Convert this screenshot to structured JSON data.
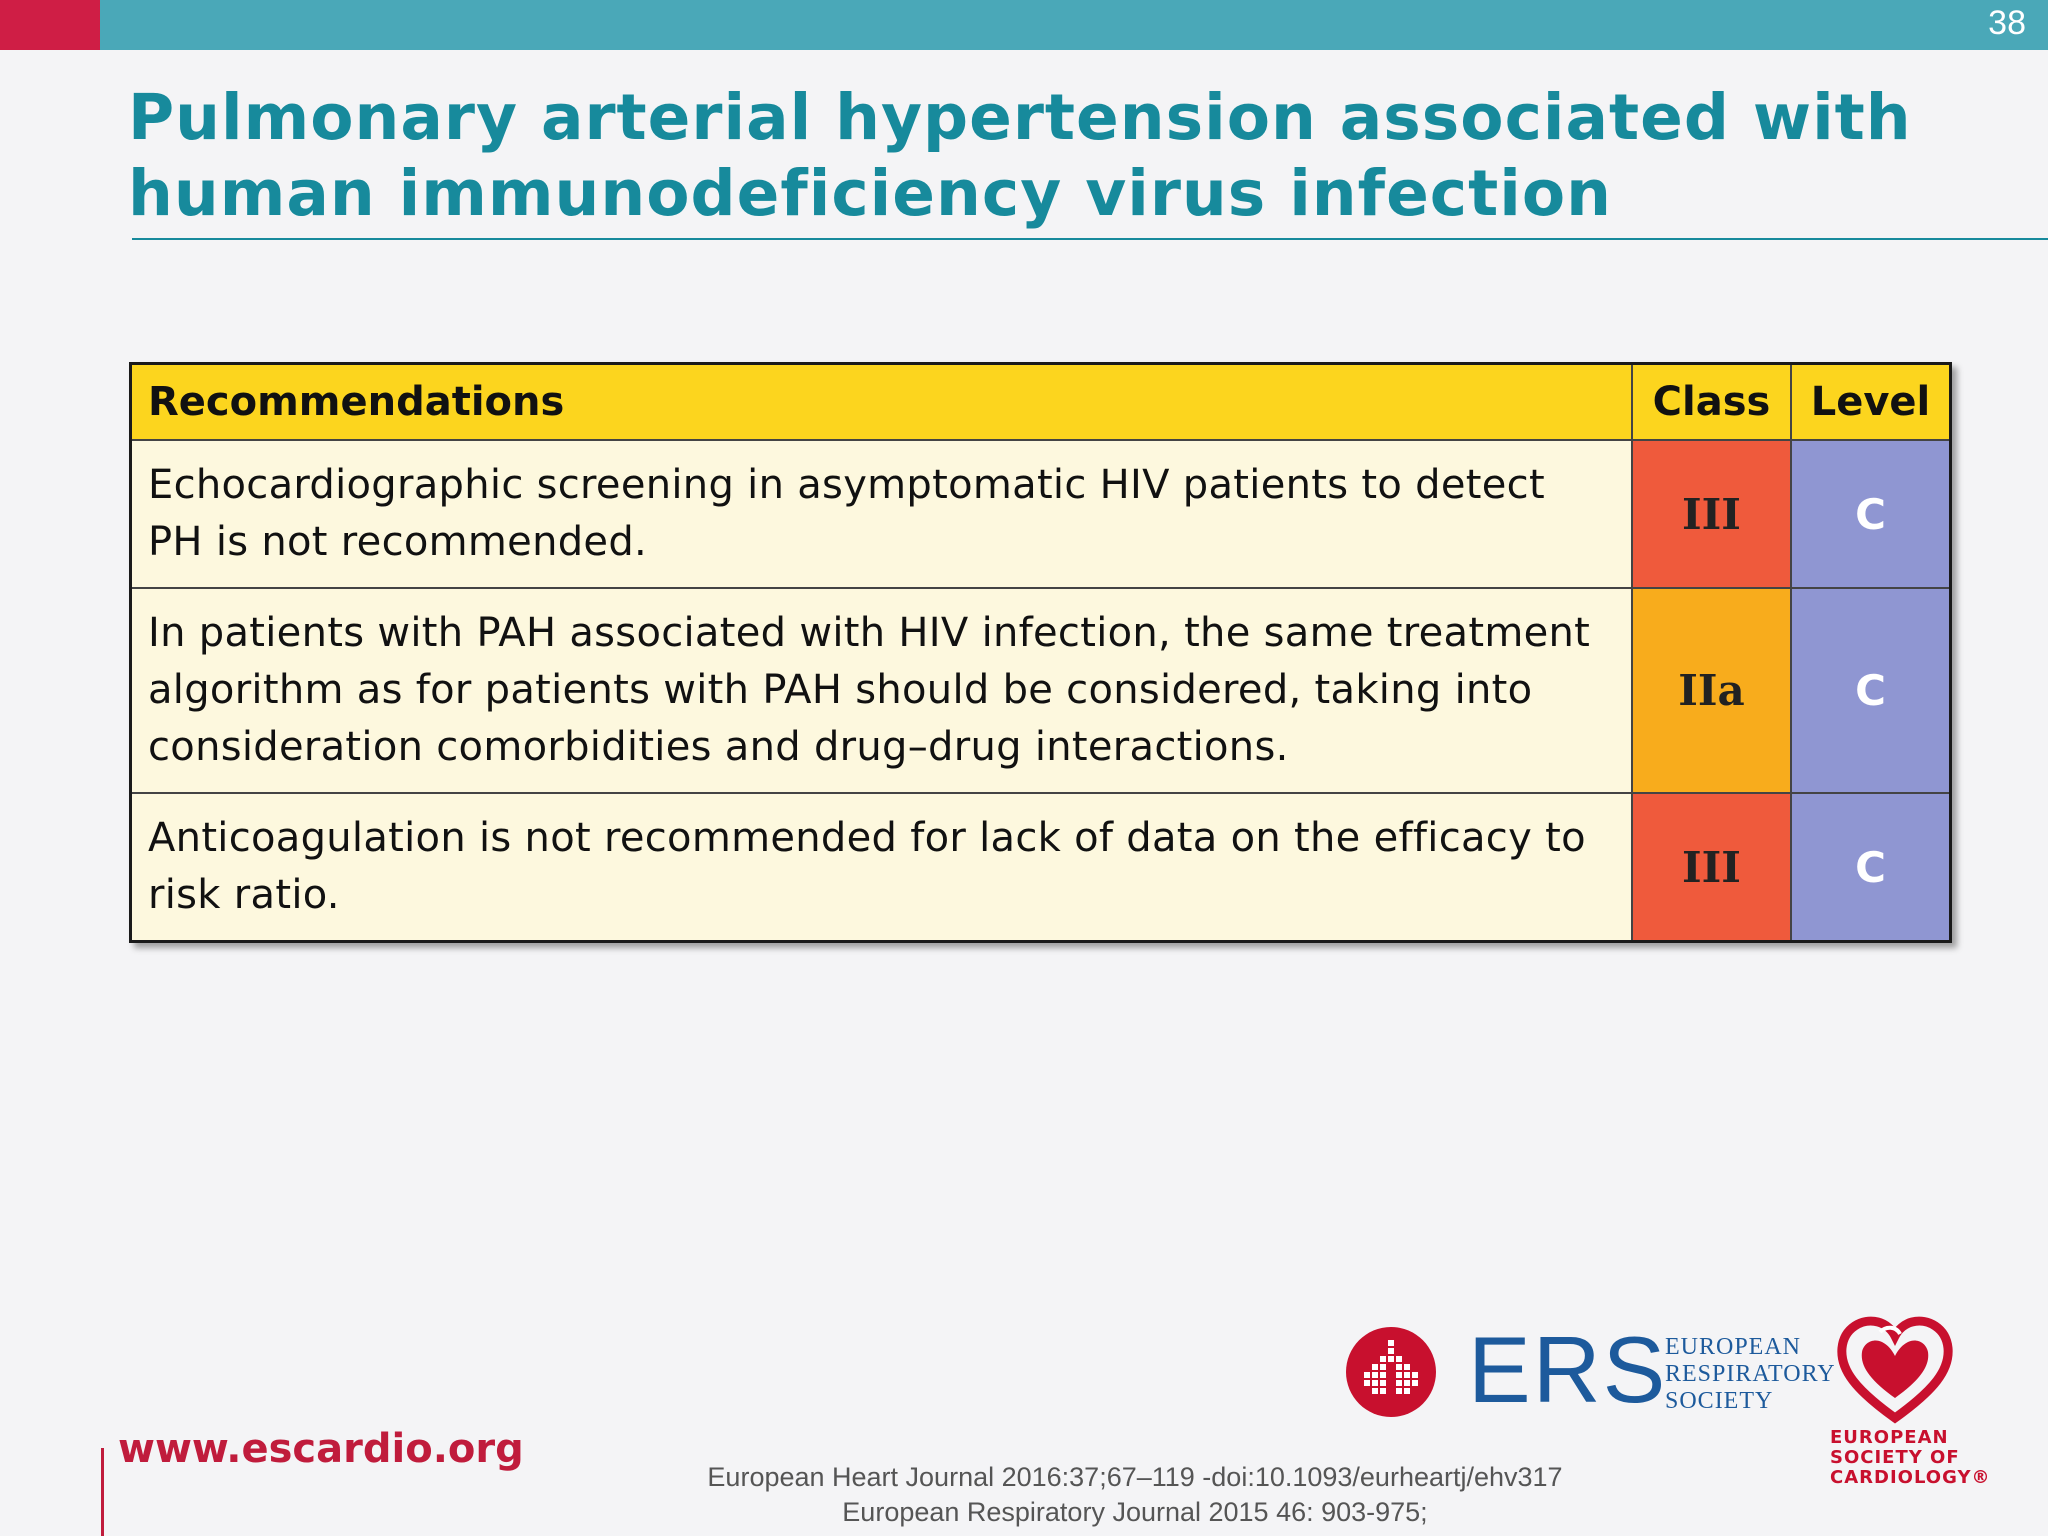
{
  "slide_number": "38",
  "title_line1": "Pulmonary arterial hypertension associated with",
  "title_line2": "human immunodeficiency virus infection",
  "table": {
    "headers": {
      "recommendations": "Recommendations",
      "class": "Class",
      "level": "Level"
    },
    "rows": [
      {
        "text": "Echocardiographic screening in asymptomatic HIV patients to detect PH is not recommended.",
        "class": "III",
        "level": "C",
        "class_color": "#ef5a3c"
      },
      {
        "text": "In patients with PAH associated with HIV infection, the same treatment algorithm as for patients with PAH should be considered, taking into consideration comorbidities and drug–drug interactions.",
        "class": "IIa",
        "level": "C",
        "class_color": "#f8ac1c"
      },
      {
        "text": "Anticoagulation is not recommended for lack of data on the efficacy to risk ratio.",
        "class": "III",
        "level": "C",
        "class_color": "#ef5a3c"
      }
    ]
  },
  "footer": {
    "url": "www.escardio.org",
    "ref1": "European Heart Journal 2016:37;67–119 -doi:10.1093/eurheartj/ehv317",
    "ref2": "European Respiratory Journal 2015 46: 903-975;"
  },
  "logos": {
    "ers_abbr": "ERS",
    "ers_line1": "EUROPEAN",
    "ers_line2": "RESPIRATORY",
    "ers_line3": "SOCIETY",
    "esc_line1": "EUROPEAN",
    "esc_line2": "SOCIETY OF",
    "esc_line3": "CARDIOLOGY®"
  },
  "colors": {
    "top_bar": "#4aa8b8",
    "top_bar_accent": "#cf1e45",
    "title": "#178a9c",
    "header_yellow": "#fcd51e",
    "level_blue": "#8f96d2"
  }
}
